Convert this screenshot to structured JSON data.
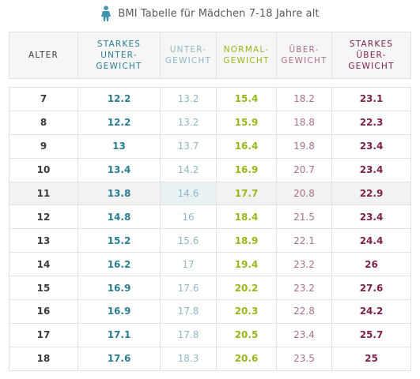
{
  "title": "BMI Tabelle für Mädchen 7-18 Jahre alt",
  "colors": {
    "alter": "#3a3a3a",
    "starkes_untergewicht": "#2b7e90",
    "untergewicht": "#8fb8c4",
    "normalgewicht": "#96b81c",
    "uebergewicht": "#a8708c",
    "starkes_uebergewicht": "#7d2249",
    "icon": "#3f95ad"
  },
  "icon": "girl-icon",
  "headers": {
    "alter": "ALTER",
    "starkes_untergewicht": [
      "STARKES",
      "UNTER-",
      "GEWICHT"
    ],
    "untergewicht": [
      "UNTER-",
      "GEWICHT"
    ],
    "normalgewicht": [
      "NORMAL-",
      "GEWICHT"
    ],
    "uebergewicht": [
      "ÜBER-",
      "GEWICHT"
    ],
    "starkes_uebergewicht": [
      "STARKES",
      "ÜBER-",
      "GEWICHT"
    ]
  },
  "rows": [
    [
      "7",
      "12.2",
      "13.2",
      "15.4",
      "18.2",
      "23.1"
    ],
    [
      "8",
      "12.2",
      "13.2",
      "15.9",
      "18.8",
      "22.3"
    ],
    [
      "9",
      "13",
      "13.7",
      "16.4",
      "19.8",
      "23.4"
    ],
    [
      "10",
      "13.4",
      "14.2",
      "16.9",
      "20.7",
      "23.4"
    ],
    [
      "11",
      "13.8",
      "14.6",
      "17.7",
      "20.8",
      "22.9"
    ],
    [
      "12",
      "14.8",
      "16",
      "18.4",
      "21.5",
      "23.4"
    ],
    [
      "13",
      "15.2",
      "15.6",
      "18.9",
      "22.1",
      "24.4"
    ],
    [
      "14",
      "16.2",
      "17",
      "19.4",
      "23.2",
      "26"
    ],
    [
      "15",
      "16.9",
      "17.6",
      "20.2",
      "23.2",
      "27.6"
    ],
    [
      "16",
      "16.9",
      "17.8",
      "20.3",
      "22.8",
      "24.2"
    ],
    [
      "17",
      "17.1",
      "17.8",
      "20.5",
      "23.4",
      "25.7"
    ],
    [
      "18",
      "17.6",
      "18.3",
      "20.6",
      "23.5",
      "25"
    ]
  ]
}
